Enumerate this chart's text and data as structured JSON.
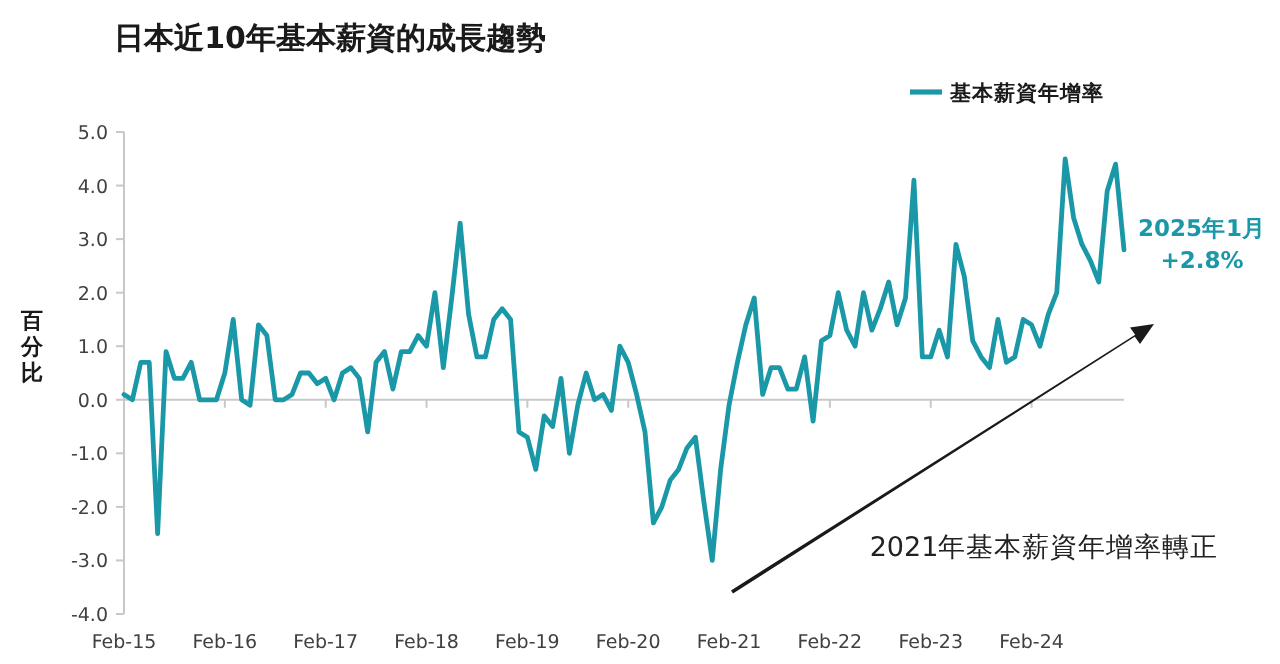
{
  "chart_data": {
    "type": "line",
    "title": "日本近10年基本薪資的成長趨勢",
    "ylabel": "百分比",
    "legend": "top right",
    "x": [
      "2015-02",
      "2015-03",
      "2015-04",
      "2015-05",
      "2015-06",
      "2015-07",
      "2015-08",
      "2015-09",
      "2015-10",
      "2015-11",
      "2015-12",
      "2016-01",
      "2016-02",
      "2016-03",
      "2016-04",
      "2016-05",
      "2016-06",
      "2016-07",
      "2016-08",
      "2016-09",
      "2016-10",
      "2016-11",
      "2016-12",
      "2017-01",
      "2017-02",
      "2017-03",
      "2017-04",
      "2017-05",
      "2017-06",
      "2017-07",
      "2017-08",
      "2017-09",
      "2017-10",
      "2017-11",
      "2017-12",
      "2018-01",
      "2018-02",
      "2018-03",
      "2018-04",
      "2018-05",
      "2018-06",
      "2018-07",
      "2018-08",
      "2018-09",
      "2018-10",
      "2018-11",
      "2018-12",
      "2019-01",
      "2019-02",
      "2019-03",
      "2019-04",
      "2019-05",
      "2019-06",
      "2019-07",
      "2019-08",
      "2019-09",
      "2019-10",
      "2019-11",
      "2019-12",
      "2020-01",
      "2020-02",
      "2020-03",
      "2020-04",
      "2020-05",
      "2020-06",
      "2020-07",
      "2020-08",
      "2020-09",
      "2020-10",
      "2020-11",
      "2020-12",
      "2021-01",
      "2021-02",
      "2021-03",
      "2021-04",
      "2021-05",
      "2021-06",
      "2021-07",
      "2021-08",
      "2021-09",
      "2021-10",
      "2021-11",
      "2021-12",
      "2022-01",
      "2022-02",
      "2022-03",
      "2022-04",
      "2022-05",
      "2022-06",
      "2022-07",
      "2022-08",
      "2022-09",
      "2022-10",
      "2022-11",
      "2022-12",
      "2023-01",
      "2023-02",
      "2023-03",
      "2023-04",
      "2023-05",
      "2023-06",
      "2023-07",
      "2023-08",
      "2023-09",
      "2023-10",
      "2023-11",
      "2023-12",
      "2024-01",
      "2024-02",
      "2024-03",
      "2024-04",
      "2024-05",
      "2024-06",
      "2024-07",
      "2024-08",
      "2024-09",
      "2024-10",
      "2024-11",
      "2024-12",
      "2025-01"
    ],
    "series": [
      {
        "name": "基本薪資年增率",
        "color": "#1b98a8",
        "values": [
          0.1,
          0.0,
          0.7,
          0.7,
          -2.5,
          0.9,
          0.4,
          0.4,
          0.7,
          0.0,
          0.0,
          0.0,
          0.5,
          1.5,
          0.0,
          -0.1,
          1.4,
          1.2,
          0.0,
          0.0,
          0.1,
          0.5,
          0.5,
          0.3,
          0.4,
          0.0,
          0.5,
          0.6,
          0.4,
          -0.6,
          0.7,
          0.9,
          0.2,
          0.9,
          0.9,
          1.2,
          1.0,
          2.0,
          0.6,
          1.9,
          3.3,
          1.6,
          0.8,
          0.8,
          1.5,
          1.7,
          1.5,
          -0.6,
          -0.7,
          -1.3,
          -0.3,
          -0.5,
          0.4,
          -1.0,
          -0.1,
          0.5,
          0.0,
          0.1,
          -0.2,
          1.0,
          0.7,
          0.1,
          -0.6,
          -2.3,
          -2.0,
          -1.5,
          -1.3,
          -0.9,
          -0.7,
          -1.9,
          -3.0,
          -1.3,
          -0.1,
          0.7,
          1.4,
          1.9,
          0.1,
          0.6,
          0.6,
          0.2,
          0.2,
          0.8,
          -0.4,
          1.1,
          1.2,
          2.0,
          1.3,
          1.0,
          2.0,
          1.3,
          1.7,
          2.2,
          1.4,
          1.9,
          4.1,
          0.8,
          0.8,
          1.3,
          0.8,
          2.9,
          2.3,
          1.1,
          0.8,
          0.6,
          1.5,
          0.7,
          0.8,
          1.5,
          1.4,
          1.0,
          1.6,
          2.0,
          4.5,
          3.4,
          2.9,
          2.6,
          2.2,
          3.9,
          4.4,
          2.8
        ]
      }
    ],
    "xlim": [
      "2015-02",
      "2025-01"
    ],
    "xticks": [
      {
        "value": "2015-02",
        "label": "Feb-15"
      },
      {
        "value": "2016-02",
        "label": "Feb-16"
      },
      {
        "value": "2017-02",
        "label": "Feb-17"
      },
      {
        "value": "2018-02",
        "label": "Feb-18"
      },
      {
        "value": "2019-02",
        "label": "Feb-19"
      },
      {
        "value": "2020-02",
        "label": "Feb-20"
      },
      {
        "value": "2021-02",
        "label": "Feb-21"
      },
      {
        "value": "2022-02",
        "label": "Feb-22"
      },
      {
        "value": "2023-02",
        "label": "Feb-23"
      },
      {
        "value": "2024-02",
        "label": "Feb-24"
      }
    ],
    "ylim": [
      -4,
      5
    ],
    "yticks": [
      {
        "value": -4,
        "label": "-4.0"
      },
      {
        "value": -3,
        "label": "-3.0"
      },
      {
        "value": -2,
        "label": "-2.0"
      },
      {
        "value": -1,
        "label": "-1.0"
      },
      {
        "value": 0,
        "label": "0.0"
      },
      {
        "value": 1,
        "label": "1.0"
      },
      {
        "value": 2,
        "label": "2.0"
      },
      {
        "value": 3,
        "label": "3.0"
      },
      {
        "value": 4,
        "label": "4.0"
      },
      {
        "value": 5,
        "label": "5.0"
      }
    ],
    "annotations": [
      {
        "text": "2025年1月 +2.8%",
        "x": "2025-01",
        "y": 2.8
      },
      "2021年基本薪資年增率轉正"
    ]
  }
}
